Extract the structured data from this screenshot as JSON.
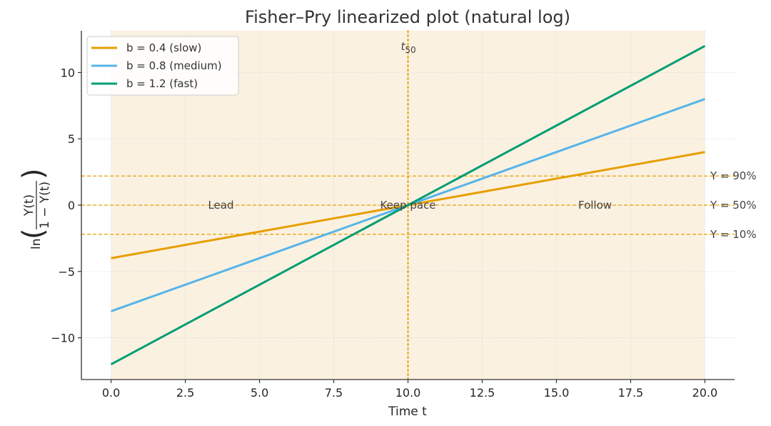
{
  "chart_data": {
    "type": "line",
    "title": "Fisher–Pry linearized plot (natural log)",
    "xlabel": "Time t",
    "ylabel": "ln(Y(t) / (1 − Y(t)))",
    "xlim": [
      -1,
      21
    ],
    "ylim": [
      -13.15,
      13.15
    ],
    "x_ticks": [
      0,
      2.5,
      5,
      7.5,
      10,
      12.5,
      15,
      17.5,
      20
    ],
    "x_tick_labels": [
      "0.0",
      "2.5",
      "5.0",
      "7.5",
      "10.0",
      "12.5",
      "15.0",
      "17.5",
      "20.0"
    ],
    "y_ticks": [
      -10,
      -5,
      0,
      5,
      10
    ],
    "y_tick_labels": [
      "−10",
      "−5",
      "0",
      "5",
      "10"
    ],
    "grid": true,
    "legend_position": "upper left",
    "shaded_region": {
      "x0": 0,
      "x1": 20,
      "color": "#FBF1E1"
    },
    "series": [
      {
        "name": "b = 0.4 (slow)",
        "color": "#E69F00",
        "x": [
          0,
          20
        ],
        "values": [
          -4,
          4
        ]
      },
      {
        "name": "b = 0.8 (medium)",
        "color": "#56B4E9",
        "x": [
          0,
          20
        ],
        "values": [
          -8,
          8
        ]
      },
      {
        "name": "b = 1.2 (fast)",
        "color": "#009E73",
        "x": [
          0,
          20
        ],
        "values": [
          -12,
          12
        ]
      }
    ],
    "reference_lines": {
      "horizontal": [
        {
          "y": 2.197,
          "label": "Y = 90%"
        },
        {
          "y": 0,
          "label": "Y = 50%"
        },
        {
          "y": -2.197,
          "label": "Y = 10%"
        }
      ],
      "vertical": [
        {
          "x": 10,
          "label": "t50"
        }
      ],
      "color": "#E69F00"
    },
    "annotations": [
      {
        "text": "Lead",
        "x": 3.7,
        "y": 0
      },
      {
        "text": "Keep pace",
        "x": 10,
        "y": 0
      },
      {
        "text": "Follow",
        "x": 16.3,
        "y": 0
      }
    ]
  },
  "labels": {
    "title": "Fisher–Pry linearized plot (natural log)",
    "xlabel": "Time t",
    "ylabel_ln": "ln",
    "ylabel_num": "Y(t)",
    "ylabel_den": "1 − Y(t)",
    "t50_base": "t",
    "t50_sub": "50",
    "lead": "Lead",
    "keep_pace": "Keep pace",
    "follow": "Follow",
    "y90": "Y = 90%",
    "y50": "Y = 50%",
    "y10": "Y = 10%"
  }
}
